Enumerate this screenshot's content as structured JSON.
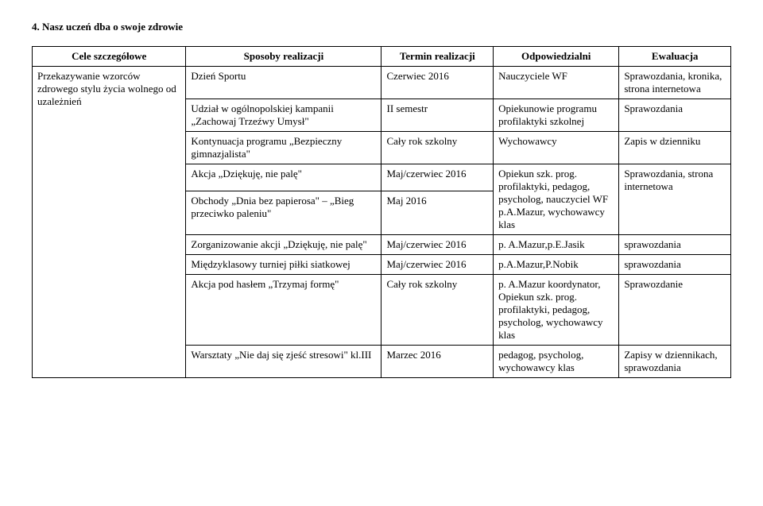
{
  "section_title": "4.  Nasz uczeń dba o swoje zdrowie",
  "headers": {
    "c1": "Cele szczegółowe",
    "c2": "Sposoby realizacji",
    "c3": "Termin realizacji",
    "c4": "Odpowiedzialni",
    "c5": "Ewaluacja"
  },
  "rows": [
    {
      "c1": "Przekazywanie wzorców zdrowego stylu życia wolnego od uzależnień",
      "c2": "Dzień Sportu",
      "c3": "Czerwiec 2016",
      "c4": "Nauczyciele WF",
      "c5": "Sprawozdania, kronika, strona internetowa"
    },
    {
      "c1": "",
      "c2": "Udział w ogólnopolskiej kampanii „Zachowaj Trzeźwy Umysł\"",
      "c3": "II semestr",
      "c4": "Opiekunowie programu profilaktyki szkolnej",
      "c5": "Sprawozdania"
    },
    {
      "c1": "",
      "c2": "Kontynuacja programu „Bezpieczny gimnazjalista\"",
      "c3": "Cały rok szkolny",
      "c4": "Wychowawcy",
      "c5": "Zapis w dzienniku"
    },
    {
      "c1": "",
      "c2": "Akcja „Dziękuję, nie palę\"",
      "c3": "Maj/czerwiec 2016",
      "c4": "Opiekun szk. prog. profilaktyki, pedagog, psycholog, nauczyciel WF p.A.Mazur, wychowawcy klas",
      "c5": "Sprawozdania, strona internetowa"
    },
    {
      "c1": "",
      "c2": "Obchody „Dnia bez papierosa\" – „Bieg przeciwko paleniu\"",
      "c3": "Maj 2016",
      "c4": "",
      "c5": ""
    },
    {
      "c1": "",
      "c2": "Zorganizowanie akcji  „Dziękuję, nie palę\"",
      "c3": "Maj/czerwiec 2016",
      "c4": "p. A.Mazur,p.E.Jasik",
      "c5": "sprawozdania"
    },
    {
      "c1": "",
      "c2": "Międzyklasowy turniej piłki siatkowej",
      "c3": "Maj/czerwiec 2016",
      "c4": "p.A.Mazur,P.Nobik",
      "c5": "sprawozdania"
    },
    {
      "c1": "",
      "c2": "Akcja pod hasłem „Trzymaj formę\"",
      "c3": "Cały rok szkolny",
      "c4": "p. A.Mazur koordynator, Opiekun szk. prog. profilaktyki, pedagog, psycholog, wychowawcy klas",
      "c5": "Sprawozdanie"
    },
    {
      "c1": "",
      "c2": "Warsztaty „Nie daj się zjeść stresowi\" kl.III",
      "c3": "Marzec 2016",
      "c4": "pedagog, psycholog, wychowawcy klas",
      "c5": "Zapisy w dziennikach, sprawozdania"
    }
  ]
}
